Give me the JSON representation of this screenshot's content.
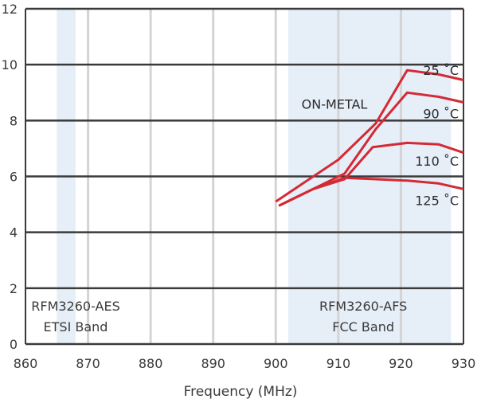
{
  "chart_data": {
    "type": "line",
    "xlabel": "Frequency (MHz)",
    "ylabel": "",
    "xlim": [
      860,
      930
    ],
    "ylim": [
      0,
      12
    ],
    "xticks": [
      "860",
      "870",
      "880",
      "890",
      "900",
      "910",
      "920",
      "930"
    ],
    "yticks": [
      "0",
      "2",
      "4",
      "6",
      "8",
      "10",
      "12"
    ],
    "grid": true,
    "annotation": "ON-METAL",
    "bands": [
      {
        "line1": "RFM3260-AES",
        "line2": "ETSI Band",
        "from": 865,
        "to": 868
      },
      {
        "line1": "RFM3260-AFS",
        "line2": "FCC Band",
        "from": 902,
        "to": 928
      }
    ],
    "series": [
      {
        "name": "25 ˚C",
        "x": [
          900,
          910,
          916,
          921,
          926,
          930
        ],
        "y": [
          5.1,
          6.6,
          7.9,
          9.8,
          9.65,
          9.45
        ]
      },
      {
        "name": "90 ˚C",
        "x": [
          900.5,
          911,
          916,
          921,
          926,
          930
        ],
        "y": [
          4.95,
          6.1,
          7.7,
          9.0,
          8.85,
          8.65
        ]
      },
      {
        "name": "110 ˚C",
        "x": [
          900.5,
          906,
          911,
          915.5,
          921,
          926,
          930
        ],
        "y": [
          4.95,
          5.55,
          5.9,
          7.05,
          7.2,
          7.15,
          6.85
        ]
      },
      {
        "name": "125 ˚C",
        "x": [
          900.5,
          906,
          911,
          916,
          921,
          926,
          930
        ],
        "y": [
          4.95,
          5.55,
          5.95,
          5.9,
          5.85,
          5.75,
          5.55
        ]
      }
    ],
    "colors": {
      "line": "#d42a35",
      "band": "#e6eef8",
      "grid_major": "#3a3a3a",
      "grid_minor": "#d4d4d4"
    }
  }
}
